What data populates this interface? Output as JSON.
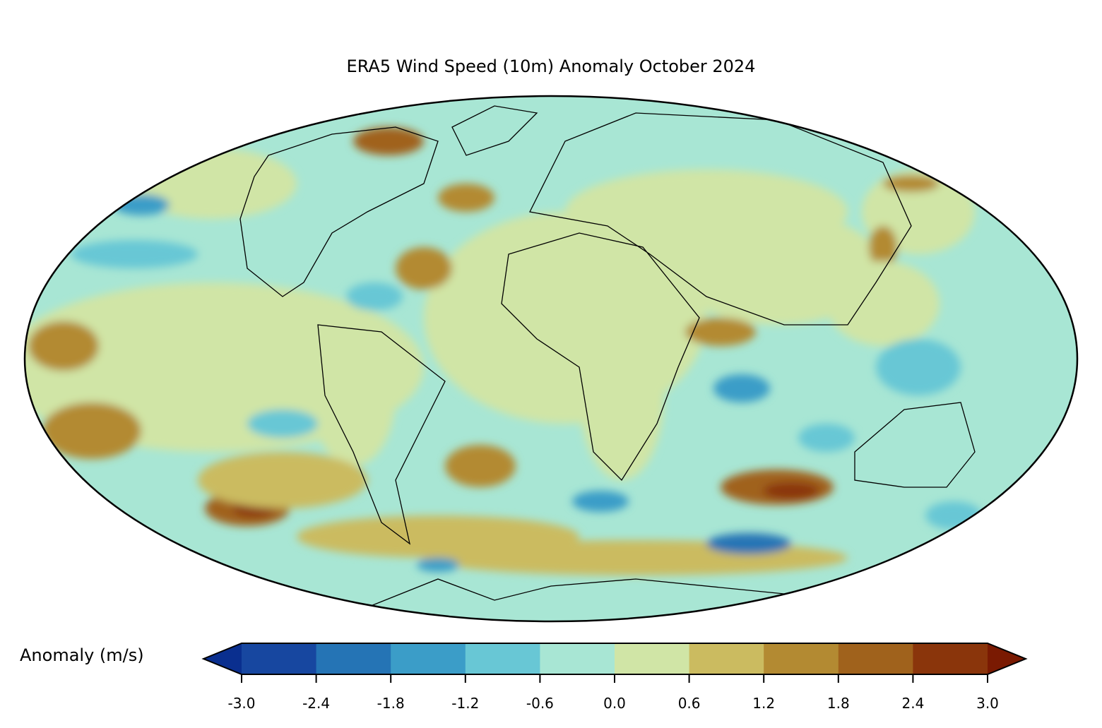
{
  "title": "ERA5 Wind Speed (10m) Anomaly October 2024",
  "projection": "mollweide",
  "colorbar": {
    "label": "Anomaly (m/s)",
    "ticks": [
      "-3.0",
      "-2.4",
      "-1.8",
      "-1.2",
      "-0.6",
      "0.0",
      "0.6",
      "1.2",
      "1.8",
      "2.4",
      "3.0"
    ],
    "under_color": "#0a2f8f",
    "over_color": "#7a1a02",
    "colors": [
      "#1747a0",
      "#2574b5",
      "#3b9dc8",
      "#68c7d5",
      "#a8e6d4",
      "#d0e5a6",
      "#cbbb60",
      "#b38a32",
      "#a0621c",
      "#8a350b"
    ],
    "extend": "both"
  }
}
